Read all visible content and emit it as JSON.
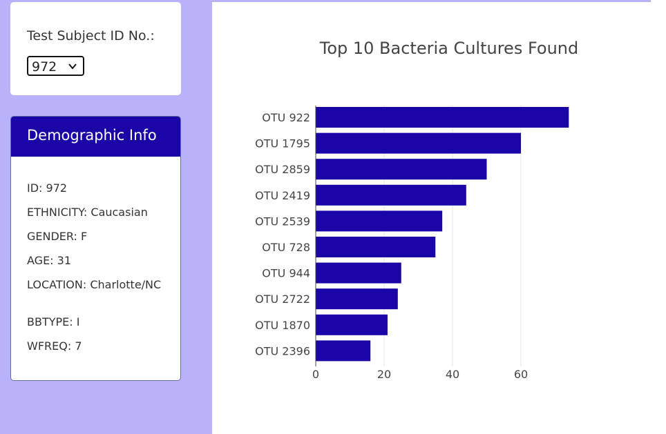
{
  "selector": {
    "label": "Test Subject ID No.:",
    "selected_value": "972"
  },
  "demographics": {
    "title": "Demographic Info",
    "lines": [
      "ID: 972",
      "ETHNICITY: Caucasian",
      "GENDER: F",
      "AGE: 31",
      "LOCATION: Charlotte/NC",
      "BBTYPE: I",
      "WFREQ: 7"
    ]
  },
  "colors": {
    "bar": "#1a05a6",
    "panel_background": "#b9b2fb",
    "header_background": "#1a05a6"
  },
  "chart_data": {
    "type": "bar",
    "orientation": "horizontal",
    "title": "Top 10 Bacteria Cultures Found",
    "xlabel": "",
    "ylabel": "",
    "categories": [
      "OTU 922",
      "OTU 1795",
      "OTU 2859",
      "OTU 2419",
      "OTU 2539",
      "OTU 728",
      "OTU 944",
      "OTU 2722",
      "OTU 1870",
      "OTU 2396"
    ],
    "values": [
      74,
      60,
      50,
      44,
      37,
      35,
      25,
      24,
      21,
      16
    ],
    "xlim": [
      0,
      77
    ],
    "xticks": [
      "0",
      "20",
      "40",
      "60"
    ],
    "grid": true
  }
}
